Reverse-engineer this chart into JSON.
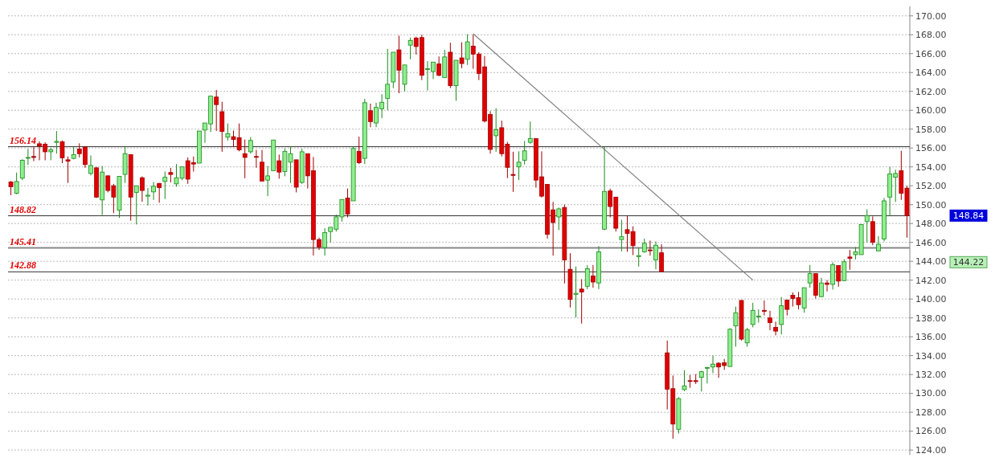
{
  "chart_data": {
    "type": "candlestick",
    "categories": [
      null,
      null,
      null,
      null,
      null,
      null,
      null,
      null,
      null,
      null,
      null,
      null,
      null,
      null,
      null,
      null,
      null,
      null,
      null,
      null,
      null,
      null,
      null,
      null,
      null,
      null,
      null,
      null,
      null,
      null,
      null,
      null,
      null,
      null,
      null,
      null,
      null,
      null,
      null,
      null,
      null,
      null,
      null,
      null,
      null,
      null,
      null,
      null,
      null,
      null,
      null,
      null,
      null,
      null,
      null,
      null,
      null,
      null,
      null,
      null,
      null,
      null,
      null,
      null,
      null,
      null,
      null,
      null,
      null,
      null,
      null,
      null,
      null,
      null,
      null,
      null,
      null,
      null,
      null,
      null,
      null,
      null,
      null,
      null,
      null,
      null,
      null,
      null,
      null,
      null,
      null,
      null,
      null,
      null,
      null,
      null,
      null,
      null,
      null,
      null,
      null,
      null,
      null,
      null,
      null,
      null,
      null,
      null,
      null,
      null,
      null,
      null,
      null,
      null,
      null,
      null,
      null,
      null,
      null,
      null,
      null,
      null,
      null,
      null,
      null,
      null,
      null,
      null,
      null,
      null,
      null,
      null,
      null,
      null,
      null,
      null,
      null,
      null,
      null,
      null,
      null,
      null,
      null,
      null,
      null,
      null,
      null,
      null,
      null,
      null,
      null,
      null,
      null,
      null,
      null,
      null,
      null,
      null
    ],
    "ohlc": [
      [
        152.4,
        152.5,
        151.0,
        151.9
      ],
      [
        151.2,
        153.4,
        151.1,
        152.45
      ],
      [
        152.8,
        154.8,
        152.6,
        154.7
      ],
      [
        155.0,
        155.9,
        154.2,
        155.0
      ],
      [
        155.1,
        156.1,
        154.6,
        155.0
      ],
      [
        156.45,
        156.7,
        154.7,
        156.2
      ],
      [
        156.4,
        156.6,
        154.7,
        155.6
      ],
      [
        155.6,
        156.0,
        154.7,
        155.8
      ],
      [
        156.6,
        157.8,
        155.4,
        156.7
      ],
      [
        156.65,
        156.8,
        154.4,
        154.95
      ],
      [
        154.75,
        155.1,
        152.3,
        154.6
      ],
      [
        154.9,
        156.1,
        154.8,
        155.3
      ],
      [
        155.9,
        156.5,
        155.0,
        155.4
      ],
      [
        156.1,
        156.2,
        153.9,
        154.25
      ],
      [
        153.3,
        155.2,
        153.1,
        154.15
      ],
      [
        153.9,
        154.0,
        150.7,
        150.8
      ],
      [
        150.5,
        154.1,
        148.9,
        153.45
      ],
      [
        153.05,
        153.1,
        151.3,
        151.5
      ],
      [
        152.0,
        152.2,
        149.1,
        150.8
      ],
      [
        149.4,
        153.0,
        148.6,
        153.0
      ],
      [
        153.2,
        156.2,
        152.3,
        155.4
      ],
      [
        155.3,
        155.3,
        148.3,
        150.8
      ],
      [
        151.3,
        152.0,
        147.9,
        152.0
      ],
      [
        152.85,
        153.0,
        150.3,
        151.5
      ],
      [
        150.9,
        151.75,
        149.9,
        151.0
      ],
      [
        151.35,
        152.4,
        150.5,
        151.95
      ],
      [
        152.25,
        152.3,
        150.2,
        151.8
      ],
      [
        152.45,
        153.5,
        150.6,
        152.9
      ],
      [
        153.4,
        153.9,
        152.35,
        153.2
      ],
      [
        152.2,
        154.3,
        151.9,
        152.85
      ],
      [
        152.8,
        154.0,
        152.6,
        154.0
      ],
      [
        154.65,
        155.0,
        152.2,
        152.7
      ],
      [
        154.45,
        155.1,
        153.5,
        154.3
      ],
      [
        154.4,
        157.8,
        154.4,
        157.8
      ],
      [
        157.9,
        158.65,
        156.55,
        158.65
      ],
      [
        158.55,
        161.5,
        157.7,
        161.5
      ],
      [
        161.4,
        162.15,
        157.8,
        160.6
      ],
      [
        159.85,
        160.9,
        155.6,
        157.75
      ],
      [
        157.15,
        158.6,
        156.8,
        157.5
      ],
      [
        157.2,
        157.85,
        156.1,
        156.9
      ],
      [
        157.1,
        158.6,
        155.65,
        155.8
      ],
      [
        155.4,
        156.9,
        152.8,
        155.0
      ],
      [
        155.6,
        157.15,
        155.4,
        156.8
      ],
      [
        155.1,
        155.8,
        153.9,
        155.05
      ],
      [
        154.5,
        155.8,
        152.5,
        152.5
      ],
      [
        152.6,
        154.1,
        150.9,
        153.05
      ],
      [
        153.6,
        156.85,
        153.6,
        156.85
      ],
      [
        154.65,
        155.3,
        152.75,
        153.45
      ],
      [
        153.5,
        155.95,
        153.0,
        155.65
      ],
      [
        154.5,
        156.2,
        152.3,
        155.4
      ],
      [
        154.75,
        154.75,
        151.3,
        151.85
      ],
      [
        152.35,
        155.9,
        152.2,
        155.6
      ],
      [
        155.4,
        155.4,
        151.7,
        153.05
      ],
      [
        153.6,
        155.05,
        144.6,
        146.3
      ],
      [
        146.3,
        146.5,
        145.2,
        145.5
      ],
      [
        145.45,
        147.5,
        144.6,
        147.05
      ],
      [
        147.15,
        147.6,
        146.0,
        147.6
      ],
      [
        147.4,
        148.95,
        147.15,
        148.7
      ],
      [
        148.7,
        150.55,
        148.2,
        150.55
      ],
      [
        150.7,
        151.7,
        148.65,
        149.0
      ],
      [
        150.4,
        156.1,
        150.4,
        155.95
      ],
      [
        155.65,
        157.2,
        154.3,
        154.45
      ],
      [
        154.9,
        161.2,
        154.3,
        160.8
      ],
      [
        159.95,
        160.7,
        158.2,
        158.8
      ],
      [
        158.65,
        160.8,
        158.2,
        160.3
      ],
      [
        160.15,
        161.7,
        159.15,
        160.85
      ],
      [
        161.25,
        166.5,
        160.0,
        162.75
      ],
      [
        163.0,
        166.15,
        162.35,
        166.15
      ],
      [
        166.4,
        167.9,
        161.8,
        164.25
      ],
      [
        162.75,
        164.8,
        162.0,
        164.8
      ],
      [
        166.9,
        167.7,
        165.4,
        167.4
      ],
      [
        167.65,
        167.8,
        165.9,
        166.75
      ],
      [
        167.7,
        168.0,
        163.2,
        163.7
      ],
      [
        164.4,
        165.2,
        162.1,
        164.4
      ],
      [
        164.1,
        165.1,
        163.3,
        165.1
      ],
      [
        164.9,
        165.7,
        163.6,
        163.7
      ],
      [
        163.45,
        166.4,
        163.45,
        165.65
      ],
      [
        166.15,
        167.15,
        162.35,
        162.6
      ],
      [
        162.6,
        165.3,
        161.0,
        165.3
      ],
      [
        165.55,
        167.2,
        164.45,
        164.95
      ],
      [
        165.4,
        168.05,
        164.8,
        167.25
      ],
      [
        166.8,
        168.0,
        164.4,
        165.95
      ],
      [
        165.95,
        166.15,
        163.2,
        163.9
      ],
      [
        164.6,
        165.75,
        158.7,
        158.85
      ],
      [
        159.55,
        159.9,
        155.4,
        155.85
      ],
      [
        157.3,
        160.2,
        155.6,
        157.95
      ],
      [
        158.15,
        158.9,
        155.1,
        155.4
      ],
      [
        156.4,
        156.65,
        152.8,
        153.95
      ],
      [
        153.2,
        155.6,
        151.35,
        153.1
      ],
      [
        154.0,
        155.65,
        152.6,
        154.5
      ],
      [
        154.7,
        156.75,
        154.25,
        155.7
      ],
      [
        156.6,
        158.8,
        156.45,
        157.0
      ],
      [
        157.0,
        157.0,
        151.8,
        152.6
      ],
      [
        152.95,
        155.65,
        150.75,
        150.9
      ],
      [
        152.15,
        152.15,
        146.4,
        146.85
      ],
      [
        149.45,
        150.3,
        144.6,
        148.1
      ],
      [
        148.7,
        149.7,
        147.3,
        149.55
      ],
      [
        149.7,
        150.0,
        141.65,
        144.15
      ],
      [
        143.15,
        144.85,
        139.1,
        139.95
      ],
      [
        140.5,
        143.45,
        138.05,
        140.6
      ],
      [
        141.05,
        142.1,
        137.4,
        140.75
      ],
      [
        141.35,
        143.6,
        141.05,
        143.2
      ],
      [
        142.45,
        143.6,
        141.2,
        141.8
      ],
      [
        141.7,
        145.6,
        141.05,
        145.0
      ],
      [
        147.4,
        156.1,
        147.3,
        151.4
      ],
      [
        151.45,
        151.7,
        148.65,
        149.8
      ],
      [
        150.8,
        150.8,
        147.15,
        147.5
      ],
      [
        146.3,
        148.4,
        145.05,
        146.6
      ],
      [
        147.35,
        148.85,
        145.0,
        146.95
      ],
      [
        147.15,
        147.7,
        144.65,
        145.65
      ],
      [
        144.5,
        145.45,
        143.45,
        144.6
      ],
      [
        145.0,
        146.4,
        144.9,
        145.9
      ],
      [
        145.2,
        146.2,
        144.6,
        145.15
      ],
      [
        144.15,
        146.1,
        143.15,
        145.7
      ],
      [
        144.9,
        145.8,
        142.9,
        142.9
      ],
      [
        134.3,
        135.6,
        128.3,
        130.45
      ],
      [
        130.5,
        131.9,
        125.2,
        126.75
      ],
      [
        126.2,
        129.6,
        125.75,
        129.45
      ],
      [
        130.4,
        132.45,
        130.25,
        130.8
      ],
      [
        131.35,
        131.95,
        130.6,
        131.3
      ],
      [
        131.35,
        132.05,
        131.0,
        131.25
      ],
      [
        131.7,
        132.4,
        130.2,
        132.3
      ],
      [
        132.7,
        132.8,
        131.05,
        132.75
      ],
      [
        132.8,
        134.0,
        132.15,
        133.1
      ],
      [
        133.2,
        133.3,
        131.65,
        132.8
      ],
      [
        133.25,
        133.65,
        132.5,
        132.95
      ],
      [
        132.85,
        136.9,
        132.85,
        136.8
      ],
      [
        137.15,
        139.2,
        134.95,
        138.55
      ],
      [
        139.85,
        139.85,
        135.6,
        135.75
      ],
      [
        135.35,
        136.95,
        134.95,
        136.75
      ],
      [
        137.3,
        139.6,
        137.0,
        138.8
      ],
      [
        138.1,
        138.9,
        137.5,
        138.2
      ],
      [
        138.8,
        139.85,
        138.25,
        138.7
      ],
      [
        138.0,
        138.75,
        136.7,
        137.5
      ],
      [
        137.0,
        137.6,
        136.15,
        136.6
      ],
      [
        137.3,
        140.2,
        136.25,
        139.3
      ],
      [
        139.9,
        139.9,
        138.25,
        138.9
      ],
      [
        140.4,
        140.7,
        139.2,
        140.05
      ],
      [
        140.15,
        140.75,
        138.9,
        139.4
      ],
      [
        139.05,
        141.2,
        138.55,
        141.2
      ],
      [
        141.7,
        143.6,
        141.2,
        142.7
      ],
      [
        142.7,
        142.7,
        140.05,
        140.4
      ],
      [
        140.25,
        142.25,
        140.2,
        141.7
      ],
      [
        141.7,
        142.0,
        140.8,
        141.55
      ],
      [
        141.55,
        143.9,
        141.0,
        143.65
      ],
      [
        143.55,
        143.55,
        141.3,
        141.9
      ],
      [
        141.95,
        144.2,
        141.9,
        143.95
      ],
      [
        144.45,
        145.2,
        143.1,
        144.3
      ],
      [
        144.7,
        145.5,
        144.2,
        145.0
      ],
      [
        144.7,
        147.9,
        144.7,
        147.9
      ],
      [
        148.2,
        149.5,
        146.0,
        148.85
      ],
      [
        148.2,
        148.75,
        145.7,
        146.0
      ],
      [
        145.1,
        146.65,
        145.1,
        145.8
      ],
      [
        146.35,
        150.7,
        146.1,
        150.4
      ],
      [
        150.8,
        154.0,
        148.8,
        153.25
      ],
      [
        152.9,
        153.7,
        150.3,
        153.3
      ],
      [
        153.6,
        155.7,
        150.5,
        151.2
      ],
      [
        151.75,
        152.0,
        146.5,
        148.84
      ]
    ],
    "series": [
      {
        "type": "line",
        "values": [
          null,
          null,
          null,
          null,
          null,
          null,
          null,
          null,
          null,
          null,
          null,
          null,
          null,
          null,
          null,
          null,
          null,
          null,
          null,
          null,
          null,
          null,
          null,
          null,
          null,
          null,
          null,
          null,
          null,
          null,
          null,
          null,
          null,
          null,
          null,
          null,
          null,
          null,
          null,
          null,
          null,
          null,
          null,
          null,
          null,
          null,
          null,
          null,
          null,
          null,
          null,
          null,
          null,
          null,
          null,
          null,
          null,
          null,
          null,
          null,
          null,
          null,
          null,
          null,
          null,
          null,
          null,
          null,
          null,
          null,
          null,
          null,
          null,
          null,
          null,
          null,
          null,
          null,
          null,
          null,
          null,
          168.1,
          null,
          null,
          null,
          null,
          null,
          null,
          null,
          null,
          null,
          null,
          null,
          null,
          null,
          null,
          null,
          null,
          null,
          null,
          null,
          null,
          null,
          null,
          null,
          null,
          null,
          null,
          null,
          null,
          null,
          null,
          null,
          null,
          null,
          null,
          null,
          null,
          null,
          null,
          null,
          null,
          null,
          null,
          null,
          null,
          null,
          null,
          null,
          null,
          142.0,
          null,
          null,
          null,
          null,
          null,
          null,
          null,
          null,
          null,
          null,
          null,
          null,
          null,
          null,
          null,
          null,
          null,
          null,
          null,
          null,
          null,
          null,
          null,
          null,
          null,
          null,
          null
        ],
        "color": "#808080"
      }
    ],
    "ylim": [
      123.5,
      171
    ],
    "yticks": [
      {
        "value": 124,
        "label": "124.00"
      },
      {
        "value": 126,
        "label": "126.00"
      },
      {
        "value": 128,
        "label": "128.00"
      },
      {
        "value": 130,
        "label": "130.00"
      },
      {
        "value": 132,
        "label": "132.00"
      },
      {
        "value": 134,
        "label": "134.00"
      },
      {
        "value": 136,
        "label": "136.00"
      },
      {
        "value": 138,
        "label": "138.00"
      },
      {
        "value": 140,
        "label": "140.00"
      },
      {
        "value": 142,
        "label": "142.00"
      },
      {
        "value": 144,
        "label": "144.00"
      },
      {
        "value": 146,
        "label": "146.00"
      },
      {
        "value": 148,
        "label": "148.00"
      },
      {
        "value": 150,
        "label": "150.00"
      },
      {
        "value": 152,
        "label": "152.00"
      },
      {
        "value": 154,
        "label": "154.00"
      },
      {
        "value": 156,
        "label": "156.00"
      },
      {
        "value": 158,
        "label": "158.00"
      },
      {
        "value": 160,
        "label": "160.00"
      },
      {
        "value": 162,
        "label": "162.00"
      },
      {
        "value": 164,
        "label": "164.00"
      },
      {
        "value": 166,
        "label": "166.00"
      },
      {
        "value": 168,
        "label": "168.00"
      },
      {
        "value": 170,
        "label": "170.00"
      }
    ],
    "grid": "y",
    "ref_lines": [
      {
        "axis": "y",
        "value": 156.14,
        "label": "156.14",
        "color": "#333333"
      },
      {
        "axis": "y",
        "value": 148.82,
        "label": "148.82",
        "color": "#333333"
      },
      {
        "axis": "y",
        "value": 145.41,
        "label": "145.41",
        "color": "#888888"
      },
      {
        "axis": "y",
        "value": 142.88,
        "label": "142.88",
        "color": "#333333"
      }
    ],
    "annotations": [
      "148.84",
      "144.22"
    ]
  }
}
